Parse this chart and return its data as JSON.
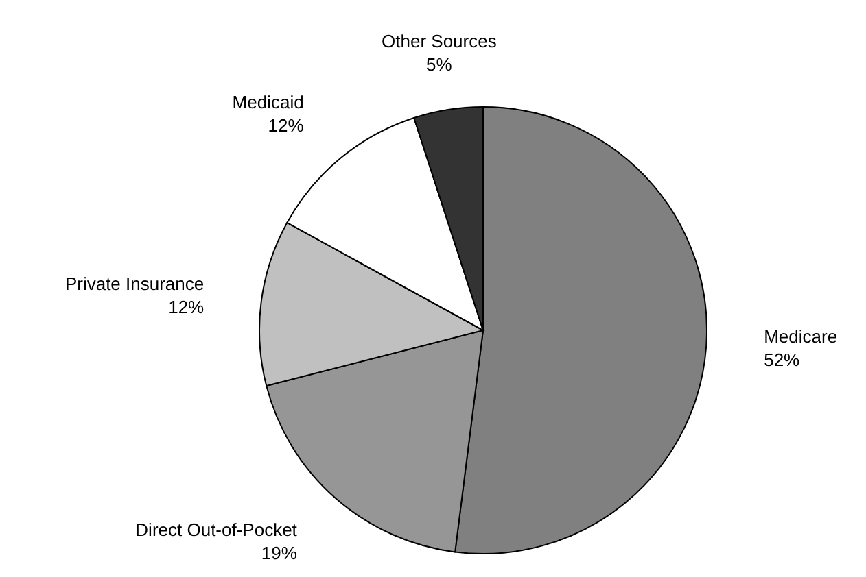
{
  "chart_data": {
    "type": "pie",
    "categories": [
      "Medicare",
      "Direct Out-of-Pocket",
      "Private Insurance",
      "Medicaid",
      "Other Sources"
    ],
    "values": [
      52,
      19,
      12,
      12,
      5
    ],
    "value_labels": [
      "52%",
      "19%",
      "12%",
      "12%",
      "5%"
    ],
    "colors": [
      "#808080",
      "#969696",
      "#c0c0c0",
      "#ffffff",
      "#333333"
    ]
  }
}
